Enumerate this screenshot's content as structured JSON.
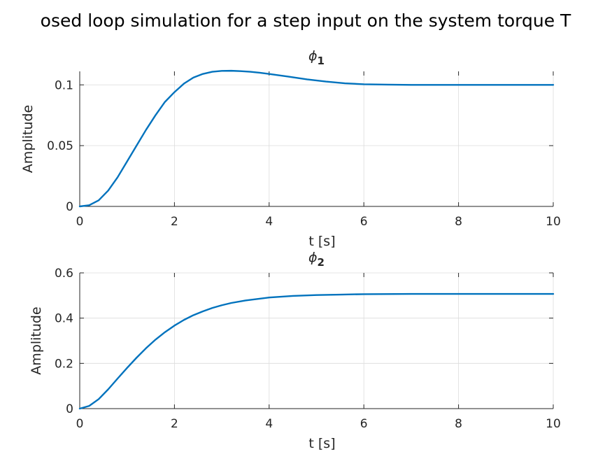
{
  "figure": {
    "suptitle": "osed loop simulation for a step input on the system torque T"
  },
  "colors": {
    "series": "#0072bd",
    "grid": "#dcdcdc",
    "axis": "#262626"
  },
  "chart_data": [
    {
      "type": "line",
      "title_symbol": "ϕ",
      "title_subscript": "1",
      "xlabel": "t [s]",
      "ylabel": "Amplitude",
      "xlim": [
        0,
        10
      ],
      "ylim": [
        0,
        0.1111
      ],
      "xticks": [
        0,
        2,
        4,
        6,
        8,
        10
      ],
      "xtick_labels": [
        "0",
        "2",
        "4",
        "6",
        "8",
        "10"
      ],
      "yticks": [
        0,
        0.05,
        0.1
      ],
      "ytick_labels": [
        "0",
        "0.05",
        "0.1"
      ],
      "grid": true,
      "legend": "none",
      "series": [
        {
          "x": [
            0,
            0.2,
            0.4,
            0.6,
            0.8,
            1.0,
            1.2,
            1.4,
            1.6,
            1.8,
            2.0,
            2.2,
            2.4,
            2.6,
            2.8,
            3.0,
            3.2,
            3.4,
            3.6,
            3.8,
            4.0,
            4.4,
            4.8,
            5.2,
            5.6,
            6.0,
            6.5,
            7.0,
            8.0,
            9.0,
            10.0
          ],
          "y": [
            0,
            0.001,
            0.005,
            0.013,
            0.024,
            0.037,
            0.05,
            0.063,
            0.075,
            0.086,
            0.094,
            0.101,
            0.106,
            0.109,
            0.1108,
            0.1115,
            0.1116,
            0.1113,
            0.1108,
            0.11,
            0.109,
            0.1068,
            0.1045,
            0.1027,
            0.1013,
            0.1005,
            0.1002,
            0.1,
            0.1,
            0.1,
            0.1
          ]
        }
      ]
    },
    {
      "type": "line",
      "title_symbol": "ϕ",
      "title_subscript": "2",
      "xlabel": "t [s]",
      "ylabel": "Amplitude",
      "xlim": [
        0,
        10
      ],
      "ylim": [
        0,
        0.6
      ],
      "xticks": [
        0,
        2,
        4,
        6,
        8,
        10
      ],
      "xtick_labels": [
        "0",
        "2",
        "4",
        "6",
        "8",
        "10"
      ],
      "yticks": [
        0,
        0.2,
        0.4,
        0.6
      ],
      "ytick_labels": [
        "0",
        "0.2",
        "0.4",
        "0.6"
      ],
      "grid": true,
      "legend": "none",
      "series": [
        {
          "x": [
            0,
            0.2,
            0.4,
            0.6,
            0.8,
            1.0,
            1.2,
            1.4,
            1.6,
            1.8,
            2.0,
            2.2,
            2.4,
            2.6,
            2.8,
            3.0,
            3.2,
            3.5,
            4.0,
            4.5,
            5.0,
            5.5,
            6.0,
            7.0,
            8.0,
            9.0,
            10.0
          ],
          "y": [
            0,
            0.012,
            0.042,
            0.085,
            0.133,
            0.18,
            0.225,
            0.267,
            0.305,
            0.338,
            0.367,
            0.392,
            0.413,
            0.43,
            0.445,
            0.457,
            0.467,
            0.478,
            0.491,
            0.498,
            0.502,
            0.504,
            0.506,
            0.507,
            0.507,
            0.507,
            0.507
          ]
        }
      ]
    }
  ]
}
